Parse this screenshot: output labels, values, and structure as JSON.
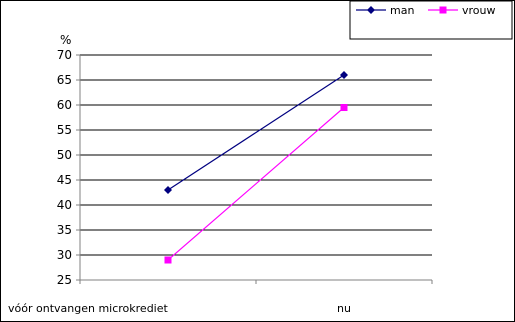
{
  "chart_data": {
    "type": "line",
    "ylabel": "%",
    "categories": [
      "vóór ontvangen microkrediet",
      "nu"
    ],
    "ylim": [
      25,
      70
    ],
    "yticks": [
      25,
      30,
      35,
      40,
      45,
      50,
      55,
      60,
      65,
      70
    ],
    "grid": true,
    "legend_position": "top-right",
    "series": [
      {
        "name": "man",
        "values": [
          43,
          66
        ],
        "color": "#000080",
        "marker": "diamond"
      },
      {
        "name": "vrouw",
        "values": [
          29,
          59.5
        ],
        "color": "#FF00FF",
        "marker": "square"
      }
    ]
  }
}
